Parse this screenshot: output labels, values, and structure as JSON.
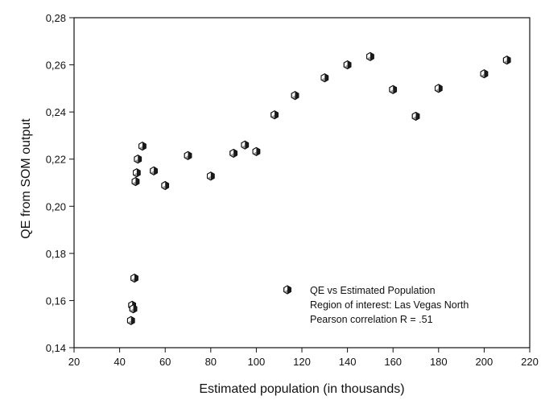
{
  "chart_data": {
    "type": "scatter",
    "title": "",
    "xlabel": "Estimated population (in thousands)",
    "ylabel": "QE from SOM output",
    "xlim": [
      20,
      220
    ],
    "ylim": [
      0.14,
      0.28
    ],
    "x_ticks": [
      20,
      40,
      60,
      80,
      100,
      120,
      140,
      160,
      180,
      200,
      220
    ],
    "x_tick_labels": [
      "20",
      "40",
      "60",
      "80",
      "100",
      "120",
      "140",
      "160",
      "180",
      "200",
      "220"
    ],
    "y_ticks": [
      0.14,
      0.16,
      0.18,
      0.2,
      0.22,
      0.24,
      0.26,
      0.28
    ],
    "y_tick_labels": [
      "0,14",
      "0,16",
      "0,18",
      "0,20",
      "0,22",
      "0,24",
      "0,26",
      "0,28"
    ],
    "grid": false,
    "legend_placement": "bottom-right",
    "marker_style": "half-shaded hexagon",
    "series": [
      {
        "name": "QE vs Estimated Population",
        "points": [
          {
            "x": 45,
            "y": 0.1515
          },
          {
            "x": 45.5,
            "y": 0.158
          },
          {
            "x": 46,
            "y": 0.1565
          },
          {
            "x": 46.5,
            "y": 0.1695
          },
          {
            "x": 47,
            "y": 0.2105
          },
          {
            "x": 47.5,
            "y": 0.2142
          },
          {
            "x": 48,
            "y": 0.22
          },
          {
            "x": 50,
            "y": 0.2255
          },
          {
            "x": 55,
            "y": 0.215
          },
          {
            "x": 60,
            "y": 0.2088
          },
          {
            "x": 70,
            "y": 0.2215
          },
          {
            "x": 80,
            "y": 0.2128
          },
          {
            "x": 90,
            "y": 0.2225
          },
          {
            "x": 95,
            "y": 0.226
          },
          {
            "x": 100,
            "y": 0.2232
          },
          {
            "x": 108,
            "y": 0.2388
          },
          {
            "x": 117,
            "y": 0.247
          },
          {
            "x": 130,
            "y": 0.2545
          },
          {
            "x": 140,
            "y": 0.26
          },
          {
            "x": 150,
            "y": 0.2635
          },
          {
            "x": 160,
            "y": 0.2495
          },
          {
            "x": 170,
            "y": 0.2382
          },
          {
            "x": 180,
            "y": 0.25
          },
          {
            "x": 200,
            "y": 0.2562
          },
          {
            "x": 210,
            "y": 0.262
          }
        ]
      }
    ],
    "legend_lines": [
      "QE vs Estimated Population",
      "Region of interest: Las Vegas North",
      "Pearson correlation R = .51"
    ]
  }
}
